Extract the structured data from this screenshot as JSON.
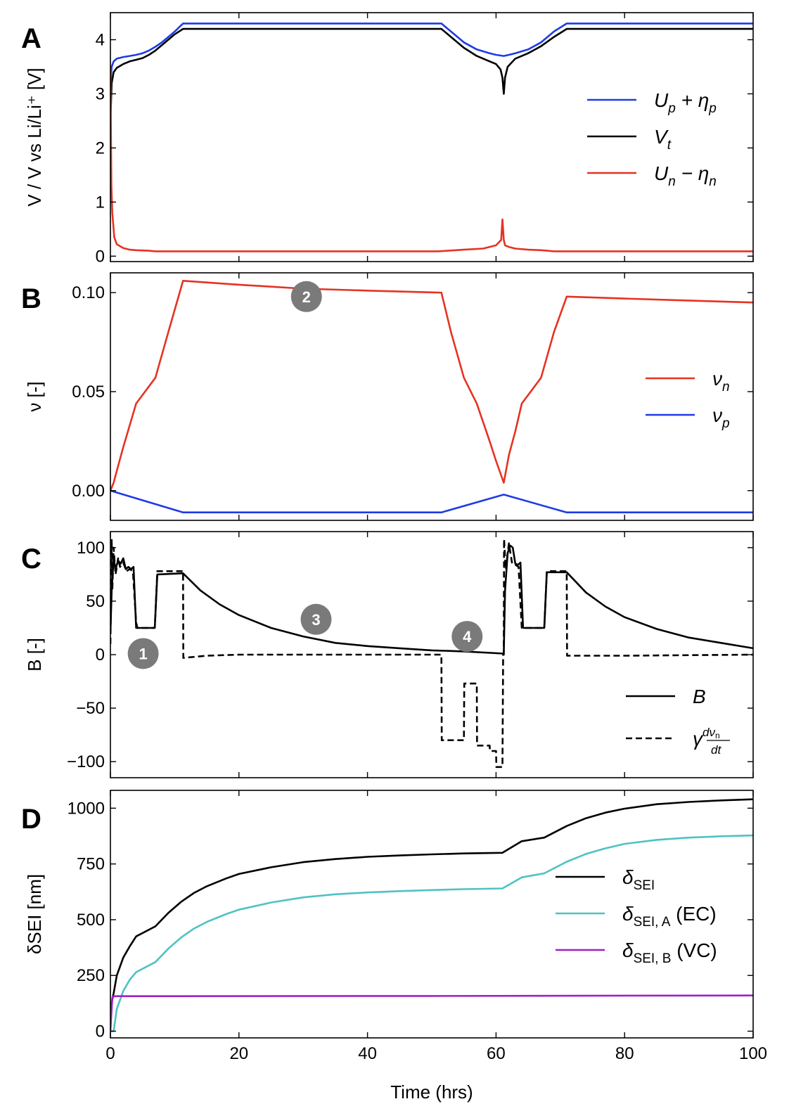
{
  "colors": {
    "blue": "#1f3be6",
    "black": "#000000",
    "red": "#e53322",
    "teal": "#4fc2c3",
    "purple": "#a020c8",
    "marker_gray": "#7a7a7a"
  },
  "shared_xaxis": {
    "label": "Time (hrs)",
    "ticks": [
      0,
      20,
      40,
      60,
      80,
      100
    ],
    "tick_labels": [
      "0",
      "20",
      "40",
      "60",
      "80",
      "100"
    ],
    "xlim": [
      0,
      100
    ]
  },
  "chart_data": [
    {
      "panel": "A",
      "type": "line",
      "ylabel": "V / V vs Li/Li⁺ [V]",
      "ylim": [
        -0.1,
        4.5
      ],
      "yticks": [
        0,
        1,
        2,
        3,
        4
      ],
      "ytick_labels": [
        "0",
        "1",
        "2",
        "3",
        "4"
      ],
      "legend_position": "right",
      "series": [
        {
          "name": "Up + ηp",
          "legend": {
            "main": "U",
            "sub1": "p",
            "mid": " + η",
            "sub2": "p"
          },
          "color": "#1f3be6",
          "dash": false,
          "x": [
            0,
            0.2,
            0.5,
            1,
            2,
            3,
            4,
            5,
            6,
            7,
            8,
            9,
            10,
            11.3,
            20,
            30,
            40,
            51.5,
            53,
            55,
            57,
            59,
            60,
            61.2,
            62,
            63,
            65,
            67,
            69,
            71,
            80,
            90,
            100
          ],
          "y": [
            3.2,
            3.5,
            3.6,
            3.65,
            3.68,
            3.7,
            3.72,
            3.75,
            3.8,
            3.87,
            3.95,
            4.05,
            4.15,
            4.3,
            4.3,
            4.3,
            4.3,
            4.3,
            4.15,
            3.95,
            3.82,
            3.75,
            3.72,
            3.7,
            3.72,
            3.75,
            3.82,
            3.95,
            4.15,
            4.3,
            4.3,
            4.3,
            4.3
          ]
        },
        {
          "name": "Vt",
          "legend": {
            "main": "V",
            "sub1": "t",
            "mid": "",
            "sub2": ""
          },
          "color": "#000000",
          "dash": false,
          "x": [
            0,
            0.2,
            0.5,
            1,
            2,
            3,
            4,
            5,
            6,
            7,
            8,
            9,
            10,
            11.3,
            20,
            30,
            40,
            51.5,
            53,
            55,
            57,
            59,
            60,
            60.7,
            61.0,
            61.2,
            61.4,
            61.8,
            63,
            65,
            67,
            69,
            71,
            80,
            90,
            100
          ],
          "y": [
            2.5,
            3.2,
            3.4,
            3.48,
            3.55,
            3.6,
            3.63,
            3.66,
            3.72,
            3.8,
            3.9,
            4.0,
            4.1,
            4.2,
            4.2,
            4.2,
            4.2,
            4.2,
            4.05,
            3.85,
            3.7,
            3.6,
            3.55,
            3.45,
            3.3,
            3.0,
            3.3,
            3.5,
            3.65,
            3.75,
            3.88,
            4.05,
            4.2,
            4.2,
            4.2,
            4.2
          ]
        },
        {
          "name": "Un − ηn",
          "legend": {
            "main": "U",
            "sub1": "n",
            "mid": " − η",
            "sub2": "n"
          },
          "color": "#e53322",
          "dash": false,
          "x": [
            0,
            0.15,
            0.3,
            0.6,
            1,
            2,
            3,
            4,
            6,
            7,
            10,
            20,
            40,
            51,
            55,
            58,
            60,
            60.8,
            61.0,
            61.2,
            61.4,
            62,
            63,
            65,
            67,
            68,
            69,
            71,
            80,
            90,
            100
          ],
          "y": [
            3.5,
            1.3,
            0.8,
            0.35,
            0.22,
            0.15,
            0.12,
            0.11,
            0.1,
            0.09,
            0.09,
            0.09,
            0.09,
            0.09,
            0.12,
            0.14,
            0.2,
            0.3,
            0.68,
            0.3,
            0.2,
            0.17,
            0.14,
            0.12,
            0.11,
            0.1,
            0.09,
            0.09,
            0.09,
            0.09,
            0.09
          ]
        }
      ]
    },
    {
      "panel": "B",
      "type": "line",
      "ylabel": "ν [-]",
      "ylim": [
        -0.015,
        0.11
      ],
      "yticks": [
        0,
        0.05,
        0.1
      ],
      "ytick_labels": [
        "0.00",
        "0.05",
        "0.10"
      ],
      "legend_position": "right",
      "series": [
        {
          "name": "νn",
          "legend": {
            "main": "ν",
            "sub1": "n",
            "mid": "",
            "sub2": ""
          },
          "color": "#e53322",
          "dash": false,
          "x": [
            0,
            0.5,
            1,
            2,
            4,
            7,
            9,
            11.3,
            20,
            30,
            40,
            51.5,
            53,
            55,
            57,
            59,
            60,
            61.2,
            62,
            63,
            64,
            67,
            69,
            71,
            80,
            90,
            100
          ],
          "y": [
            0,
            0.004,
            0.01,
            0.022,
            0.044,
            0.057,
            0.08,
            0.106,
            0.104,
            0.102,
            0.101,
            0.1,
            0.08,
            0.057,
            0.044,
            0.025,
            0.015,
            0.004,
            0.018,
            0.03,
            0.044,
            0.057,
            0.08,
            0.098,
            0.097,
            0.096,
            0.095
          ]
        },
        {
          "name": "νp",
          "legend": {
            "main": "ν",
            "sub1": "p",
            "mid": "",
            "sub2": ""
          },
          "color": "#1f3be6",
          "dash": false,
          "x": [
            0,
            11.3,
            51.5,
            61.2,
            71,
            100
          ],
          "y": [
            0,
            -0.011,
            -0.011,
            -0.002,
            -0.011,
            -0.011
          ]
        }
      ]
    },
    {
      "panel": "C",
      "type": "line",
      "ylabel": "B [-]",
      "ylim": [
        -115,
        115
      ],
      "yticks": [
        -100,
        -50,
        0,
        50,
        100
      ],
      "ytick_labels": [
        "−100",
        "−50",
        "0",
        "50",
        "100"
      ],
      "legend_position": "bottom-right",
      "series": [
        {
          "name": "B",
          "legend": {
            "main": "B",
            "sub1": "",
            "mid": "",
            "sub2": ""
          },
          "color": "#000000",
          "dash": false,
          "x": [
            0,
            0.2,
            0.5,
            0.8,
            1.2,
            1.6,
            2.0,
            2.4,
            2.8,
            3.2,
            3.6,
            4.0,
            4.4,
            6.9,
            7.3,
            11.3,
            14,
            17,
            20,
            25,
            30,
            35,
            40,
            45,
            50,
            55,
            61.2,
            61.4,
            61.8,
            62.2,
            62.6,
            63.0,
            63.4,
            63.8,
            64.2,
            64.6,
            65.0,
            67.5,
            67.9,
            71,
            74,
            77,
            80,
            85,
            90,
            95,
            100
          ],
          "y": [
            20,
            60,
            90,
            80,
            88,
            85,
            90,
            80,
            82,
            80,
            82,
            25,
            25,
            25,
            75,
            76,
            60,
            47,
            37,
            25,
            17,
            11,
            8,
            6,
            4,
            3,
            1,
            60,
            95,
            102,
            100,
            85,
            84,
            86,
            25,
            25,
            25,
            25,
            77,
            77,
            58,
            45,
            35,
            24,
            16,
            11,
            6
          ]
        },
        {
          "name": "γ dνn/dt",
          "legend": {
            "main": "γ",
            "frac": true
          },
          "color": "#000000",
          "dash": true,
          "x": [
            0,
            0.2,
            0.3,
            0.5,
            0.8,
            1.2,
            1.5,
            2.0,
            2.5,
            3.0,
            3.5,
            4.0,
            4.2,
            6.9,
            7.3,
            11.3,
            11.35,
            15,
            20,
            30,
            40,
            51.5,
            51.55,
            55,
            55.05,
            57,
            57.05,
            59,
            59.05,
            60,
            60.05,
            61,
            61.1,
            61.2,
            61.25,
            61.5,
            62,
            62.5,
            63,
            63.5,
            64,
            64.5,
            65,
            67.5,
            67.9,
            71,
            71.05,
            80,
            100
          ],
          "y": [
            10,
            108,
            60,
            100,
            75,
            90,
            82,
            86,
            78,
            80,
            78,
            30,
            25,
            25,
            78,
            78,
            -3,
            -1,
            0,
            0,
            0,
            0,
            -80,
            -80,
            -27,
            -27,
            -85,
            -85,
            -90,
            -90,
            -105,
            -105,
            0,
            0,
            108,
            80,
            104,
            85,
            84,
            82,
            25,
            25,
            25,
            25,
            78,
            78,
            -1,
            -1,
            0
          ]
        }
      ],
      "annotations": [
        {
          "label": "1",
          "x": 5.1,
          "y": 1
        },
        {
          "label": "3",
          "x": 32,
          "y": 33
        },
        {
          "label": "4",
          "x": 55.5,
          "y": 17
        }
      ]
    },
    {
      "panel": "D",
      "type": "line",
      "ylabel": "δSEI [nm]",
      "ylim": [
        -30,
        1080
      ],
      "yticks": [
        0,
        250,
        500,
        750,
        1000
      ],
      "ytick_labels": [
        "0",
        "250",
        "500",
        "750",
        "1000"
      ],
      "legend_position": "right",
      "series": [
        {
          "name": "δSEI",
          "legend": {
            "main": "δ",
            "sub1": "SEI",
            "mid": "",
            "sub2": ""
          },
          "color": "#000000",
          "dash": false,
          "x": [
            0,
            0.5,
            1,
            2,
            3,
            4,
            7,
            9,
            11,
            13,
            15,
            18,
            20,
            25,
            30,
            35,
            40,
            45,
            50,
            55,
            61,
            64,
            67.5,
            71,
            74,
            77,
            80,
            85,
            90,
            95,
            100
          ],
          "y": [
            100,
            170,
            250,
            330,
            380,
            425,
            470,
            530,
            580,
            620,
            650,
            685,
            705,
            735,
            758,
            772,
            782,
            788,
            793,
            797,
            800,
            852,
            868,
            920,
            955,
            980,
            998,
            1018,
            1028,
            1035,
            1040
          ]
        },
        {
          "name": "δSEI, A (EC)",
          "legend": {
            "main": "δ",
            "sub1": "SEI, A",
            "mid": " (EC)",
            "sub2": ""
          },
          "color": "#4fc2c3",
          "dash": false,
          "x": [
            0,
            0.5,
            1,
            2,
            3,
            4,
            7,
            9,
            11,
            13,
            15,
            18,
            20,
            25,
            30,
            35,
            40,
            45,
            50,
            55,
            61,
            64,
            67.5,
            71,
            74,
            77,
            80,
            85,
            90,
            95,
            100
          ],
          "y": [
            0,
            0,
            100,
            180,
            230,
            265,
            310,
            370,
            420,
            460,
            490,
            525,
            545,
            577,
            600,
            614,
            622,
            628,
            633,
            637,
            640,
            690,
            708,
            760,
            795,
            820,
            840,
            858,
            868,
            874,
            878
          ]
        },
        {
          "name": "δSEI, B (VC)",
          "legend": {
            "main": "δ",
            "sub1": "SEI, B",
            "mid": " (VC)",
            "sub2": ""
          },
          "color": "#a020c8",
          "dash": false,
          "x": [
            0,
            0.3,
            0.5,
            1,
            50,
            100
          ],
          "y": [
            0,
            150,
            156,
            157,
            158,
            160
          ]
        }
      ]
    }
  ],
  "annotations_B": [
    {
      "label": "2",
      "x": 30.5,
      "y": 0.098
    }
  ]
}
